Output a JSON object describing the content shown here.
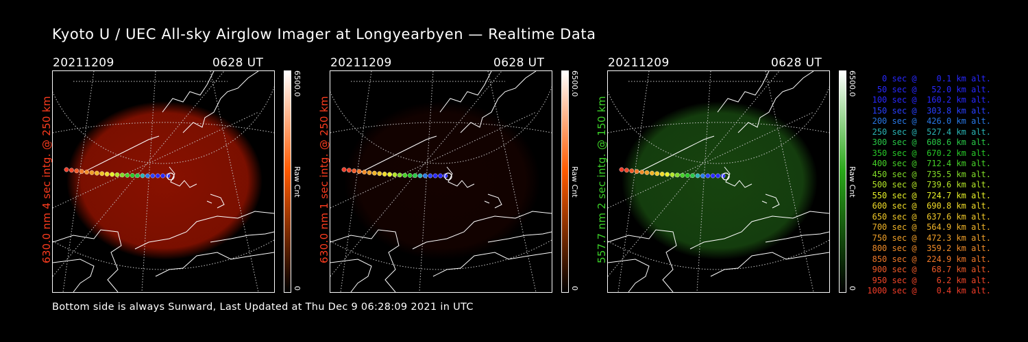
{
  "title": "Kyoto U / UEC All-sky Airglow Imager at Longyearbyen — Realtime Data",
  "footer": "Bottom side is always Sunward, Last Updated at Thu Dec  9 06:28:09 2021 in UTC",
  "panels": [
    {
      "date": "20211209",
      "time": "0628 UT",
      "side_label": "630.0 nm 4 sec intg. @ 250 km",
      "label_color": "#ff3c1e",
      "glow_color": "#a01400",
      "glow_level": 0.85,
      "colorbar_max": "6500.0",
      "colorbar_min": "0",
      "colorbar_unit": "Raw Cnt",
      "colorbar_top": "#ffffff",
      "colorbar_mid": "#ff5a00",
      "colorbar_bottom": "#000000"
    },
    {
      "date": "20211209",
      "time": "0628 UT",
      "side_label": "630.0 nm 1 sec intg. @ 250 km",
      "label_color": "#ff3c1e",
      "glow_color": "#6e0a00",
      "glow_level": 0.18,
      "colorbar_max": "6500.0",
      "colorbar_min": "0",
      "colorbar_unit": "Raw Cnt",
      "colorbar_top": "#ffffff",
      "colorbar_mid": "#ff5a00",
      "colorbar_bottom": "#000000"
    },
    {
      "date": "20211209",
      "time": "0628 UT",
      "side_label": "557.7 nm 2 sec intg. @ 150 km",
      "label_color": "#3cd228",
      "glow_color": "#1e5a14",
      "glow_level": 0.75,
      "colorbar_max": "6500.0",
      "colorbar_min": "0",
      "colorbar_unit": "Raw Cnt",
      "colorbar_top": "#ffffff",
      "colorbar_mid": "#2aa81a",
      "colorbar_bottom": "#000000"
    }
  ],
  "legend": [
    {
      "text": "0 sec @    0.1 km alt.",
      "color": "#2828ff"
    },
    {
      "text": "50 sec @   52.0 km alt.",
      "color": "#2828ff"
    },
    {
      "text": "100 sec @  160.2 km alt.",
      "color": "#2828ff"
    },
    {
      "text": "150 sec @  303.8 km alt.",
      "color": "#2840ff"
    },
    {
      "text": "200 sec @  426.0 km alt.",
      "color": "#2878e6"
    },
    {
      "text": "250 sec @  527.4 km alt.",
      "color": "#2ab4b4"
    },
    {
      "text": "300 sec @  608.6 km alt.",
      "color": "#28c846"
    },
    {
      "text": "350 sec @  670.2 km alt.",
      "color": "#28c828"
    },
    {
      "text": "400 sec @  712.4 km alt.",
      "color": "#46d228"
    },
    {
      "text": "450 sec @  735.5 km alt.",
      "color": "#82dc28"
    },
    {
      "text": "500 sec @  739.6 km alt.",
      "color": "#b4e628"
    },
    {
      "text": "550 sec @  724.7 km alt.",
      "color": "#e6f028"
    },
    {
      "text": "600 sec @  690.8 km alt.",
      "color": "#f0dc28"
    },
    {
      "text": "650 sec @  637.6 km alt.",
      "color": "#f0c828"
    },
    {
      "text": "700 sec @  564.9 km alt.",
      "color": "#f0b428"
    },
    {
      "text": "750 sec @  472.3 km alt.",
      "color": "#f0a028"
    },
    {
      "text": "800 sec @  359.2 km alt.",
      "color": "#f08c28"
    },
    {
      "text": "850 sec @  224.9 km alt.",
      "color": "#f07828"
    },
    {
      "text": "900 sec @   68.7 km alt.",
      "color": "#f05a28"
    },
    {
      "text": "950 sec @    6.2 km alt.",
      "color": "#f04628"
    },
    {
      "text": "1000 sec @    0.4 km alt.",
      "color": "#f03c28"
    }
  ]
}
